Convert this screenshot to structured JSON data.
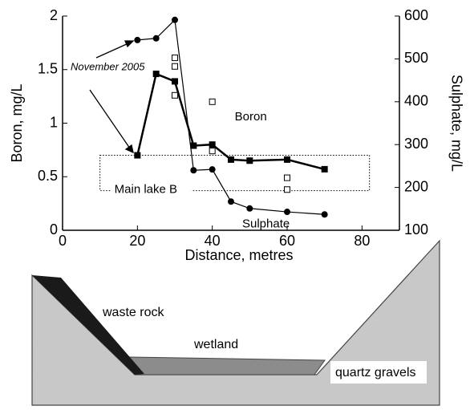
{
  "chart_data": {
    "type": "line",
    "xlabel": "Distance, metres",
    "ylabel": "Boron, mg/L",
    "y2label": "Sulphate, mg/L",
    "xlim": [
      0,
      90
    ],
    "xticks": [
      0,
      20,
      40,
      60,
      80
    ],
    "ylim": [
      0,
      2
    ],
    "yticks": [
      0,
      0.5,
      1,
      1.5,
      2
    ],
    "y2lim": [
      100,
      600
    ],
    "y2ticks": [
      100,
      200,
      300,
      400,
      500,
      600
    ],
    "series": [
      {
        "name": "Boron",
        "color": "#000000",
        "marker": "square",
        "axis": "y",
        "show_line": true,
        "x": [
          20,
          25,
          30,
          35,
          40,
          45,
          50,
          60,
          70
        ],
        "values": [
          0.7,
          1.46,
          1.39,
          0.79,
          0.8,
          0.66,
          0.65,
          0.66,
          0.57
        ]
      },
      {
        "name": "Sulphate",
        "color": "#000000",
        "marker": "circle",
        "axis": "y2",
        "show_line": true,
        "x": [
          20,
          25,
          30,
          35,
          40,
          45,
          50,
          60,
          70
        ],
        "values": [
          544,
          548,
          591,
          240,
          242,
          167,
          151,
          143,
          137
        ]
      },
      {
        "color": "#000000",
        "marker": "open-square",
        "axis": "y",
        "show_line": false,
        "x": [
          30,
          30,
          30,
          40,
          40,
          60,
          60
        ],
        "values": [
          1.61,
          1.53,
          1.26,
          1.2,
          0.74,
          0.49,
          0.38
        ]
      }
    ],
    "annotation": "November 2005",
    "region": {
      "label": "Main lake B",
      "x": [
        10,
        82
      ],
      "y": [
        0.37,
        0.7
      ]
    }
  },
  "diagram": {
    "labels": [
      "waste rock",
      "wetland",
      "quartz gravels"
    ]
  }
}
